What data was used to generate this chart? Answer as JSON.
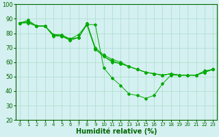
{
  "background_color": "#d4f0f0",
  "grid_color": "#aaddcc",
  "line_color": "#00aa00",
  "xlabel": "Humidité relative (%)",
  "xlabel_fontsize": 7,
  "ylim": [
    20,
    100
  ],
  "xlim": [
    -0.5,
    23.5
  ],
  "yticks": [
    20,
    30,
    40,
    50,
    60,
    70,
    80,
    90,
    100
  ],
  "xticks": [
    0,
    1,
    2,
    3,
    4,
    5,
    6,
    7,
    8,
    9,
    10,
    11,
    12,
    13,
    14,
    15,
    16,
    17,
    18,
    19,
    20,
    21,
    22,
    23
  ],
  "series": [
    [
      87,
      89,
      85,
      85,
      79,
      79,
      76,
      79,
      86,
      86,
      56,
      49,
      44,
      38,
      37,
      35,
      37,
      45,
      51,
      51,
      51,
      51,
      54,
      55
    ],
    [
      87,
      88,
      85,
      85,
      78,
      78,
      75,
      77,
      87,
      70,
      65,
      62,
      60,
      57,
      55,
      53,
      52,
      51,
      52,
      51,
      51,
      51,
      53,
      55
    ],
    [
      87,
      88,
      85,
      85,
      79,
      78,
      76,
      77,
      86,
      69,
      64,
      61,
      59,
      57,
      55,
      53,
      52,
      51,
      52,
      51,
      51,
      51,
      53,
      55
    ],
    [
      87,
      87,
      85,
      85,
      79,
      78,
      76,
      77,
      86,
      69,
      64,
      60,
      59,
      57,
      55,
      53,
      52,
      51,
      52,
      51,
      51,
      51,
      53,
      55
    ]
  ],
  "figsize": [
    3.2,
    2.0
  ],
  "dpi": 100
}
